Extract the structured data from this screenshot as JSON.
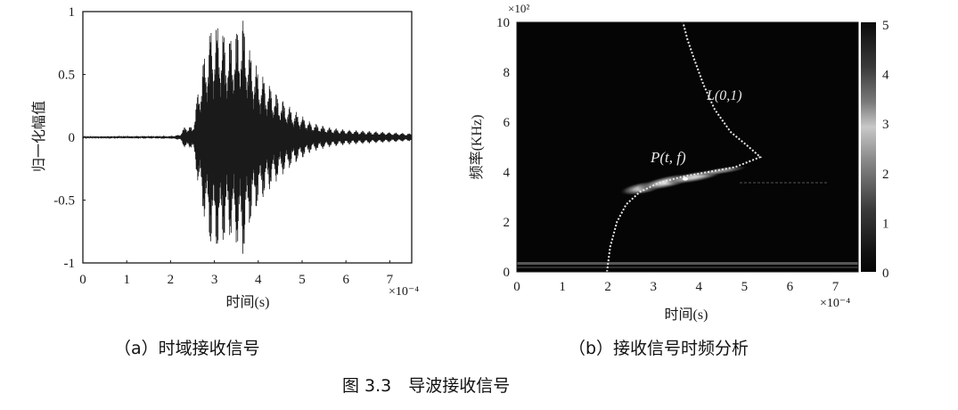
{
  "figure": {
    "caption": "图 3.3　导波接收信号",
    "subcaption_a": "（a）时域接收信号",
    "subcaption_b": "（b）接收信号时频分析"
  },
  "chart_data": [
    {
      "id": "a",
      "type": "line",
      "title": "时域接收信号",
      "xlabel": "时间(s)",
      "x_multiplier": "×10⁻⁴",
      "ylabel": "归一化幅值",
      "xlim": [
        0,
        7.5
      ],
      "ylim": [
        -1,
        1
      ],
      "xticks": [
        "0",
        "1",
        "2",
        "3",
        "4",
        "5",
        "6",
        "7"
      ],
      "yticks": [
        "1",
        "0.5",
        "0",
        "-0.5",
        "-1"
      ],
      "grid": false,
      "description": "Oscillating guided-wave signal; near zero until ~2.2e-4 s, small precursor at ~2.3e-4 s, two main envelope peaks near 3.1e-4 s (~0.93) and 3.65e-4 s (~0.98), then decaying ringing to ~0.05 by 7.5e-4 s",
      "envelope": {
        "t": [
          0,
          2.0,
          2.2,
          2.35,
          2.5,
          2.7,
          2.9,
          3.1,
          3.3,
          3.5,
          3.65,
          3.8,
          4.0,
          4.2,
          4.5,
          4.8,
          5.2,
          5.6,
          6.0,
          6.5,
          7.0,
          7.5
        ],
        "amplitude": [
          0.005,
          0.01,
          0.02,
          0.1,
          0.08,
          0.55,
          0.88,
          0.93,
          0.8,
          0.88,
          0.98,
          0.72,
          0.55,
          0.45,
          0.32,
          0.22,
          0.12,
          0.08,
          0.06,
          0.05,
          0.04,
          0.03
        ]
      }
    },
    {
      "id": "b",
      "type": "heatmap",
      "title": "接收信号时频分析",
      "xlabel": "时间(s)",
      "x_multiplier": "×10⁻⁴",
      "ylabel": "频率(KHz)",
      "y_multiplier": "×10²",
      "xlim": [
        0,
        7.5
      ],
      "ylim": [
        0,
        10
      ],
      "xticks": [
        "0",
        "1",
        "2",
        "3",
        "4",
        "5",
        "6",
        "7"
      ],
      "yticks": [
        "10",
        "8",
        "6",
        "4",
        "2",
        "0"
      ],
      "colorbar": {
        "range": [
          0,
          5
        ],
        "ticks": [
          "5",
          "4",
          "3",
          "2",
          "1",
          "0"
        ]
      },
      "annotations": [
        {
          "text": "L(0,1)",
          "x": 4.6,
          "y": 7.0
        },
        {
          "text": "P(t, f)",
          "x": 3.6,
          "y": 4.5
        }
      ],
      "dispersion_curve_L01": {
        "t": [
          1.98,
          2.05,
          2.2,
          2.4,
          2.7,
          3.1,
          3.6,
          4.2,
          4.8,
          5.35,
          5.1,
          4.7,
          4.35,
          4.1,
          3.9,
          3.75,
          3.65
        ],
        "f": [
          0,
          1.0,
          2.0,
          2.7,
          3.2,
          3.55,
          3.8,
          4.0,
          4.2,
          4.6,
          5.0,
          5.6,
          6.5,
          7.5,
          8.5,
          9.3,
          10
        ]
      },
      "energy_ridge": {
        "t_start": 2.5,
        "t_end": 5.0,
        "f_center": 3.6,
        "peak_t": 3.7,
        "peak_f": 3.8,
        "peak_value": 5
      },
      "low_frequency_band": {
        "f": 0.3,
        "t_range": [
          0,
          7.5
        ]
      }
    }
  ],
  "colors": {
    "background": "#ffffff",
    "signal": "#1a1a1a",
    "heatmap_bg": "#050505",
    "curve": "#e8e8e8"
  }
}
